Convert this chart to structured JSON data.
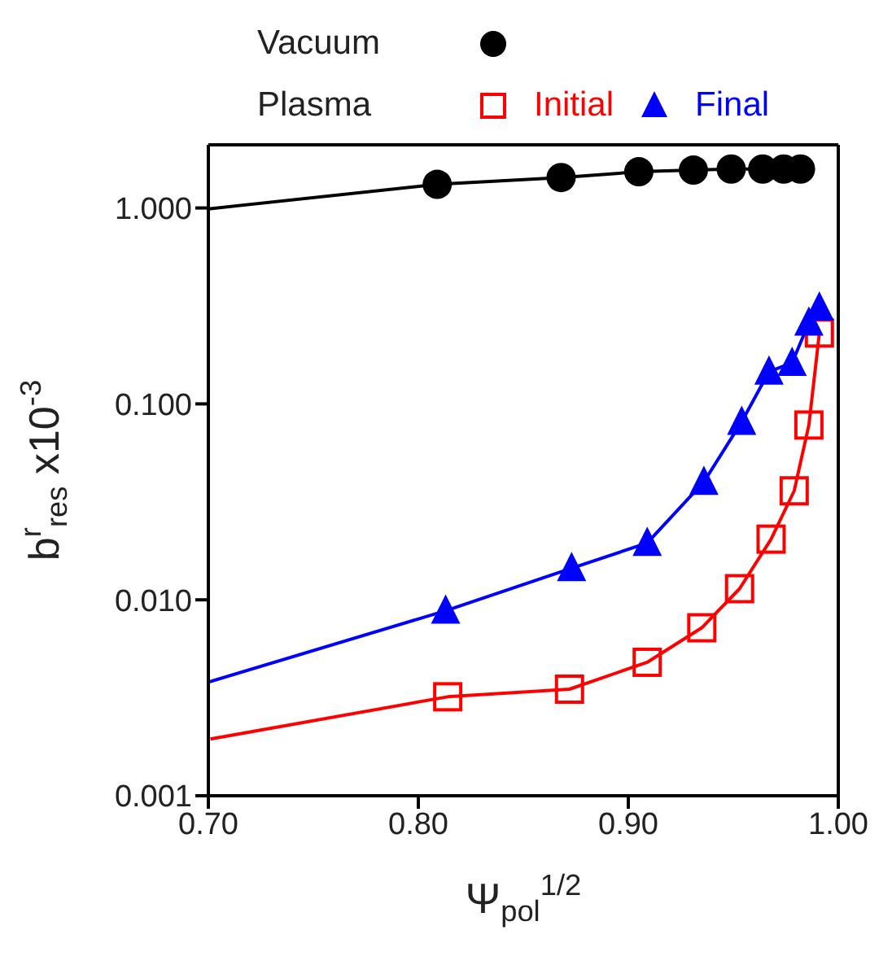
{
  "chart_data": {
    "type": "scatter",
    "xlabel": "Ψ$_{pol}$$^{1/2}$",
    "ylabel": "b$^{r}$$_{res}$ x10$^{-3}$",
    "log": "y",
    "xlim": [
      0.7,
      1.0
    ],
    "xticks": [
      {
        "value": 0.7,
        "label": "0.70"
      },
      {
        "value": 0.8,
        "label": "0.80"
      },
      {
        "value": 0.9,
        "label": "0.90"
      },
      {
        "value": 1.0,
        "label": "1.00"
      }
    ],
    "ylim": [
      0.001,
      2.1
    ],
    "yticks": [
      {
        "value": 0.001,
        "label": "0.001"
      },
      {
        "value": 0.01,
        "label": "0.010"
      },
      {
        "value": 0.1,
        "label": "0.100"
      },
      {
        "value": 1,
        "label": "1.000"
      }
    ],
    "grid": false,
    "legend": "top",
    "annotations": [
      "Plasma"
    ],
    "series": [
      {
        "type": "line",
        "marker": "none",
        "color": "#000000",
        "x": [
          0.7,
          0.809,
          0.868,
          0.905,
          0.931,
          0.949,
          0.964,
          0.974,
          0.982
        ],
        "values": [
          0.99,
          1.32,
          1.43,
          1.53,
          1.56,
          1.58,
          1.58,
          1.58,
          1.58
        ]
      },
      {
        "type": "line",
        "marker": "none",
        "color": "#ff0000",
        "x": [
          0.701,
          0.814,
          0.872,
          0.909,
          0.935,
          0.953,
          0.968,
          0.979,
          0.986,
          0.991
        ],
        "values": [
          0.00195,
          0.0032,
          0.0035,
          0.0048,
          0.0072,
          0.0114,
          0.0204,
          0.036,
          0.078,
          0.23
        ]
      },
      {
        "type": "line",
        "marker": "none",
        "color": "#0000ff",
        "x": [
          0.7,
          0.813,
          0.873,
          0.909,
          0.936,
          0.954,
          0.967,
          0.978,
          0.986,
          0.991
        ],
        "values": [
          0.0038,
          0.0088,
          0.0145,
          0.0195,
          0.04,
          0.081,
          0.146,
          0.162,
          0.26,
          0.31
        ]
      },
      {
        "name": "Vacuum",
        "marker": "circle",
        "color": "#000000",
        "x": [
          0.809,
          0.868,
          0.905,
          0.931,
          0.949,
          0.964,
          0.974,
          0.982
        ],
        "values": [
          1.32,
          1.43,
          1.53,
          1.56,
          1.58,
          1.58,
          1.58,
          1.58
        ]
      },
      {
        "name": "Initial",
        "marker": "square",
        "color": "#ff0000",
        "x": [
          0.814,
          0.872,
          0.909,
          0.935,
          0.953,
          0.968,
          0.979,
          0.986,
          0.991
        ],
        "values": [
          0.0032,
          0.0035,
          0.0048,
          0.0072,
          0.0114,
          0.0204,
          0.036,
          0.078,
          0.23
        ]
      },
      {
        "name": "Final",
        "marker": "triangle",
        "color": "#0000ff",
        "x": [
          0.813,
          0.873,
          0.909,
          0.936,
          0.954,
          0.967,
          0.978,
          0.986,
          0.991
        ],
        "values": [
          0.0088,
          0.0145,
          0.0195,
          0.04,
          0.081,
          0.146,
          0.162,
          0.26,
          0.31
        ]
      }
    ]
  }
}
